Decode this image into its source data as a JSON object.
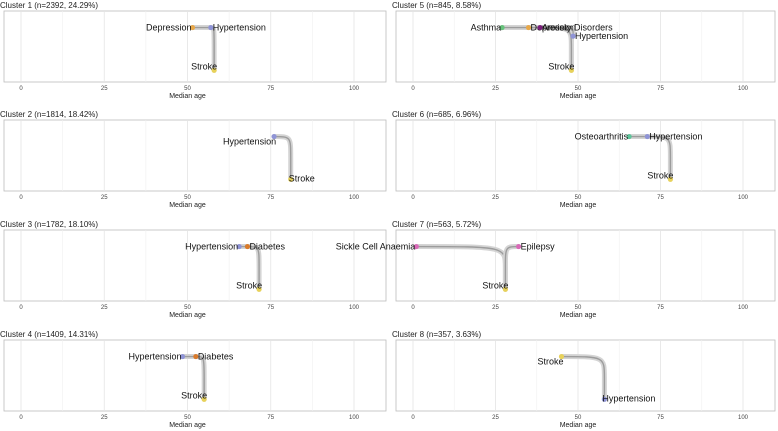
{
  "figure": {
    "xlabel": "Median age",
    "xlim": [
      0,
      105
    ],
    "xticks": [
      0,
      25,
      50,
      75,
      100
    ]
  },
  "colors": {
    "Depression": "#e8a849",
    "Hypertension": "#8f94d6",
    "Stroke": "#e8d25a",
    "Diabetes": "#d97a2a",
    "Asthma": "#66c37b",
    "Anxiety Disorders": "#7a1f7a",
    "Osteoarthritis": "#5fc49a",
    "Sickle Cell Anaemia": "#d96ab8",
    "Epilepsy": "#d96ab8"
  },
  "chart_data": [
    {
      "type": "line",
      "title": "Cluster 1 (n=2392, 24.29%)",
      "xlabel": "Median age",
      "xlim": [
        0,
        105
      ],
      "nodes": [
        {
          "label": "Depression",
          "x": 51.5,
          "y": 0.85
        },
        {
          "label": "Hypertension",
          "x": 57,
          "y": 0.85
        },
        {
          "label": "Stroke",
          "x": 58,
          "y": 0.1
        }
      ],
      "edges": [
        [
          0,
          1
        ],
        [
          1,
          2
        ]
      ]
    },
    {
      "type": "line",
      "title": "Cluster 5 (n=845, 8.58%)",
      "xlabel": "Median age",
      "xlim": [
        0,
        105
      ],
      "nodes": [
        {
          "label": "Asthma",
          "x": 27,
          "y": 0.85
        },
        {
          "label": "Depression",
          "x": 35,
          "y": 0.85
        },
        {
          "label": "Anxiety Disorders",
          "x": 38.5,
          "y": 0.85
        },
        {
          "label": "Hypertension",
          "x": 48.5,
          "y": 0.7
        },
        {
          "label": "Stroke",
          "x": 48,
          "y": 0.1
        }
      ],
      "edges": [
        [
          0,
          1
        ],
        [
          1,
          2
        ],
        [
          2,
          3
        ],
        [
          3,
          4
        ],
        [
          2,
          4
        ]
      ]
    },
    {
      "type": "line",
      "title": "Cluster 2 (n=1814, 18.42%)",
      "xlabel": "Median age",
      "xlim": [
        0,
        105
      ],
      "nodes": [
        {
          "label": "Hypertension",
          "x": 76,
          "y": 0.85
        },
        {
          "label": "Stroke",
          "x": 81,
          "y": 0.1
        }
      ],
      "edges": [
        [
          0,
          1
        ]
      ]
    },
    {
      "type": "line",
      "title": "Cluster 6 (n=685, 6.96%)",
      "xlabel": "Median age",
      "xlim": [
        0,
        105
      ],
      "nodes": [
        {
          "label": "Osteoarthritis",
          "x": 65.5,
          "y": 0.85
        },
        {
          "label": "Hypertension",
          "x": 71,
          "y": 0.85
        },
        {
          "label": "Stroke",
          "x": 78,
          "y": 0.1
        }
      ],
      "edges": [
        [
          0,
          1
        ],
        [
          1,
          2
        ]
      ]
    },
    {
      "type": "line",
      "title": "Cluster 3 (n=1782, 18.10%)",
      "xlabel": "Median age",
      "xlim": [
        0,
        105
      ],
      "nodes": [
        {
          "label": "Hypertension",
          "x": 65.5,
          "y": 0.85
        },
        {
          "label": "Diabetes",
          "x": 68,
          "y": 0.85
        },
        {
          "label": "Stroke",
          "x": 71.5,
          "y": 0.1
        }
      ],
      "edges": [
        [
          0,
          1
        ],
        [
          1,
          2
        ]
      ]
    },
    {
      "type": "line",
      "title": "Cluster 7 (n=563, 5.72%)",
      "xlabel": "Median age",
      "xlim": [
        0,
        105
      ],
      "nodes": [
        {
          "label": "Sickle Cell Anaemia",
          "x": 1,
          "y": 0.85
        },
        {
          "label": "Epilepsy",
          "x": 32,
          "y": 0.85
        },
        {
          "label": "Stroke",
          "x": 28,
          "y": 0.1
        }
      ],
      "edges": [
        [
          0,
          2
        ],
        [
          1,
          2
        ]
      ]
    },
    {
      "type": "line",
      "title": "Cluster 4 (n=1409, 14.31%)",
      "xlabel": "Median age",
      "xlim": [
        0,
        105
      ],
      "nodes": [
        {
          "label": "Hypertension",
          "x": 48.5,
          "y": 0.85
        },
        {
          "label": "Diabetes",
          "x": 52.5,
          "y": 0.85
        },
        {
          "label": "Stroke",
          "x": 55,
          "y": 0.1
        }
      ],
      "edges": [
        [
          0,
          1
        ],
        [
          1,
          2
        ]
      ]
    },
    {
      "type": "line",
      "title": "Cluster 8 (n=357, 3.63%)",
      "xlabel": "Median age",
      "xlim": [
        0,
        105
      ],
      "nodes": [
        {
          "label": "Stroke",
          "x": 45,
          "y": 0.85
        },
        {
          "label": "Hypertension",
          "x": 58,
          "y": 0.1
        }
      ],
      "edges": [
        [
          0,
          1
        ]
      ]
    }
  ]
}
